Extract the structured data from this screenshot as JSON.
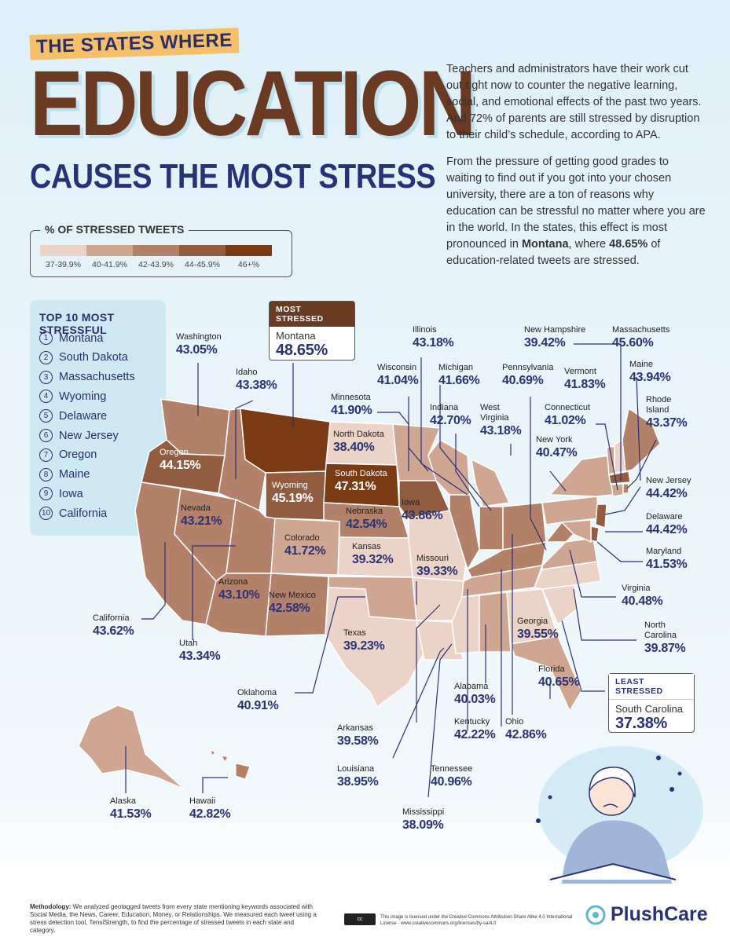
{
  "header": {
    "kicker": "THE STATES WHERE",
    "headline": "EDUCATION",
    "subhead": "CAUSES THE MOST STRESS",
    "intro_p1": "Teachers and administrators have their work cut out right now to counter the negative learning, social, and emotional effects of the past two years. And 72% of parents are still stressed by disruption to their child’s schedule, according to APA.",
    "intro_p2_a": "From the pressure of getting good grades to waiting to find out if you got into your chosen university, there are a ton of reasons why education can be stressful no matter where you are in the world. In the states, this effect is most pronounced in ",
    "intro_p2_bold1": "Montana",
    "intro_p2_b": ", where ",
    "intro_p2_bold2": "48.65%",
    "intro_p2_c": " of education-related tweets are stressed."
  },
  "legend": {
    "title": "% OF STRESSED TWEETS",
    "bins": [
      {
        "label": "37-39.9%",
        "color": "#ebd3c7"
      },
      {
        "label": "40-41.9%",
        "color": "#cfa691"
      },
      {
        "label": "42-43.9%",
        "color": "#b38169"
      },
      {
        "label": "44-45.9%",
        "color": "#925c40"
      },
      {
        "label": "46+%",
        "color": "#7a3b14"
      }
    ]
  },
  "top10": {
    "title": "TOP 10 MOST STRESSFUL",
    "items": [
      "Montana",
      "South Dakota",
      "Massachusetts",
      "Wyoming",
      "Delaware",
      "New Jersey",
      "Oregon",
      "Maine",
      "Iowa",
      "California"
    ],
    "numbers": [
      "1",
      "2",
      "3",
      "4",
      "5",
      "6",
      "7",
      "8",
      "9",
      "10"
    ]
  },
  "callouts": {
    "most": {
      "header": "MOST STRESSED",
      "name": "Montana",
      "value": "48.65%"
    },
    "least": {
      "header": "LEAST STRESSED",
      "name": "South Carolina",
      "value": "37.38%"
    }
  },
  "states": [
    {
      "name": "Washington",
      "value": "43.05%"
    },
    {
      "name": "Idaho",
      "value": "43.38%"
    },
    {
      "name": "Oregon",
      "value": "44.15%"
    },
    {
      "name": "Nevada",
      "value": "43.21%"
    },
    {
      "name": "California",
      "value": "43.62%"
    },
    {
      "name": "Utah",
      "value": "43.34%"
    },
    {
      "name": "Arizona",
      "value": "43.10%"
    },
    {
      "name": "Wyoming",
      "value": "45.19%"
    },
    {
      "name": "Colorado",
      "value": "41.72%"
    },
    {
      "name": "New Mexico",
      "value": "42.58%"
    },
    {
      "name": "North Dakota",
      "value": "38.40%"
    },
    {
      "name": "South Dakota",
      "value": "47.31%"
    },
    {
      "name": "Nebraska",
      "value": "42.54%"
    },
    {
      "name": "Kansas",
      "value": "39.32%"
    },
    {
      "name": "Oklahoma",
      "value": "40.91%"
    },
    {
      "name": "Texas",
      "value": "39.23%"
    },
    {
      "name": "Minnesota",
      "value": "41.90%"
    },
    {
      "name": "Iowa",
      "value": "43.86%"
    },
    {
      "name": "Missouri",
      "value": "39.33%"
    },
    {
      "name": "Arkansas",
      "value": "39.58%"
    },
    {
      "name": "Louisiana",
      "value": "38.95%"
    },
    {
      "name": "Wisconsin",
      "value": "41.04%"
    },
    {
      "name": "Illinois",
      "value": "43.18%"
    },
    {
      "name": "Michigan",
      "value": "41.66%"
    },
    {
      "name": "Indiana",
      "value": "42.70%"
    },
    {
      "name": "Mississippi",
      "value": "38.09%"
    },
    {
      "name": "Tennessee",
      "value": "40.96%"
    },
    {
      "name": "Alabama",
      "value": "40.03%"
    },
    {
      "name": "Kentucky",
      "value": "42.22%"
    },
    {
      "name": "Ohio",
      "value": "42.86%"
    },
    {
      "name": "West Virginia",
      "value": "43.18%"
    },
    {
      "name": "Pennsylvania",
      "value": "40.69%"
    },
    {
      "name": "New York",
      "value": "40.47%"
    },
    {
      "name": "Georgia",
      "value": "39.55%"
    },
    {
      "name": "Florida",
      "value": "40.65%"
    },
    {
      "name": "North Carolina",
      "value": "39.87%"
    },
    {
      "name": "Virginia",
      "value": "40.48%"
    },
    {
      "name": "Maryland",
      "value": "41.53%"
    },
    {
      "name": "Delaware",
      "value": "44.42%"
    },
    {
      "name": "New Jersey",
      "value": "44.42%"
    },
    {
      "name": "Connecticut",
      "value": "41.02%"
    },
    {
      "name": "Rhode Island",
      "value": "43.37%"
    },
    {
      "name": "Massachusetts",
      "value": "45.60%"
    },
    {
      "name": "Vermont",
      "value": "41.83%"
    },
    {
      "name": "New Hampshire",
      "value": "39.42%"
    },
    {
      "name": "Maine",
      "value": "43.94%"
    },
    {
      "name": "Alaska",
      "value": "41.53%"
    },
    {
      "name": "Hawaii",
      "value": "42.82%"
    }
  ],
  "footer": {
    "method_bold": "Methodology:",
    "method_text": " We analyzed geotagged tweets from every state mentioning keywords associated with Social Media, the News, Career, Education, Money, or Relationships. We measured each tweet using a stress detection tool, TensiStrength, to find the percentage of stressed tweets in each state and category.",
    "license": "This image is licensed under the Creative Commons Attribution-Share Alike 4.0 International License - www.creativecommons.org/licenses/by-sa/4.0",
    "brand": "PlushCare"
  },
  "colors": {
    "brown": "#6b3a22",
    "navy": "#2a3277",
    "gold": "#f6c06a"
  },
  "icons": {
    "brand_logo": "plushcare-logo-icon",
    "license_badge": "cc-by-sa-icon",
    "illustration": "stressed-student-illustration"
  }
}
